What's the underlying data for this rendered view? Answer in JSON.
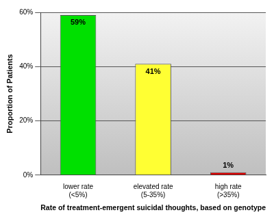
{
  "chart_data": {
    "type": "bar",
    "categories": [
      "lower rate (<5%)",
      "elevated rate (5-35%)",
      "high rate (>35%)"
    ],
    "values": [
      59,
      41,
      1
    ],
    "value_labels": [
      "59%",
      "41%",
      "1%"
    ],
    "data_labels": true,
    "colors": [
      "#00e000",
      "#ffff33",
      "#e00000"
    ],
    "x_label": "Rate of treatment-emergent suicidal thoughts, based on genotype",
    "y_label": "Proportion of Patients",
    "ylim": [
      0,
      60
    ],
    "yticks": [
      {
        "value": 0,
        "label": "0%"
      },
      {
        "value": 20,
        "label": "20%"
      },
      {
        "value": 40,
        "label": "40%"
      },
      {
        "value": 60,
        "label": "60%"
      }
    ],
    "grid": true
  }
}
